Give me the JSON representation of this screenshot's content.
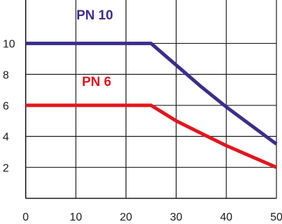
{
  "chart_data": {
    "type": "line",
    "xlim": [
      0,
      50
    ],
    "ylim": [
      0,
      12.8
    ],
    "grid": true,
    "x_ticks": [
      0,
      10,
      20,
      30,
      40,
      50
    ],
    "y_ticks": [
      2,
      4,
      6,
      8,
      10
    ],
    "x_tick_labels": [
      "0",
      "10",
      "20",
      "30",
      "40",
      "50"
    ],
    "y_tick_labels": [
      "2",
      "4",
      "6",
      "8",
      "10"
    ],
    "series": [
      {
        "name": "PN 10",
        "color": "#3b2e8c",
        "x": [
          0,
          25,
          30,
          35,
          40,
          45,
          50
        ],
        "y": [
          10,
          10,
          8.6,
          7.2,
          5.9,
          4.7,
          3.5
        ]
      },
      {
        "name": "PN 6",
        "color": "#e3161d",
        "x": [
          0,
          25,
          30,
          35,
          40,
          45,
          50
        ],
        "y": [
          6,
          6,
          5.0,
          4.2,
          3.4,
          2.7,
          2.0
        ]
      }
    ]
  }
}
